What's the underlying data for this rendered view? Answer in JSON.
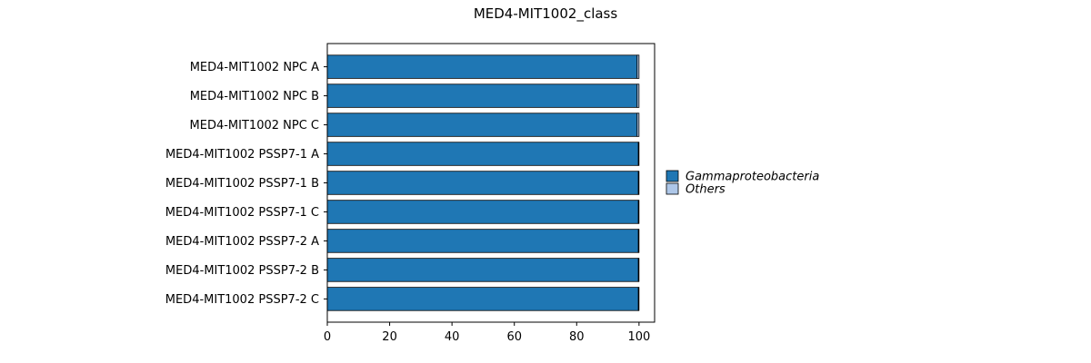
{
  "chart_data": {
    "type": "bar",
    "orientation": "horizontal",
    "stacked": true,
    "title": "MED4-MIT1002_class",
    "xlabel": "",
    "ylabel": "",
    "xlim": [
      0,
      105
    ],
    "xticks": [
      0,
      20,
      40,
      60,
      80,
      100
    ],
    "grid": false,
    "legend_position": "right",
    "categories": [
      "MED4-MIT1002 NPC A",
      "MED4-MIT1002 NPC B",
      "MED4-MIT1002 NPC C",
      "MED4-MIT1002 PSSP7-1 A",
      "MED4-MIT1002 PSSP7-1 B",
      "MED4-MIT1002 PSSP7-1 C",
      "MED4-MIT1002 PSSP7-2 A",
      "MED4-MIT1002 PSSP7-2 B",
      "MED4-MIT1002 PSSP7-2 C"
    ],
    "series": [
      {
        "name": "Gammaproteobacteria",
        "color": "#1f77b4",
        "values": [
          99.4,
          99.4,
          99.4,
          99.8,
          99.8,
          99.8,
          99.8,
          99.8,
          99.8
        ]
      },
      {
        "name": "Others",
        "color": "#aec7e8",
        "values": [
          0.6,
          0.6,
          0.6,
          0.2,
          0.2,
          0.2,
          0.2,
          0.2,
          0.2
        ]
      }
    ]
  }
}
